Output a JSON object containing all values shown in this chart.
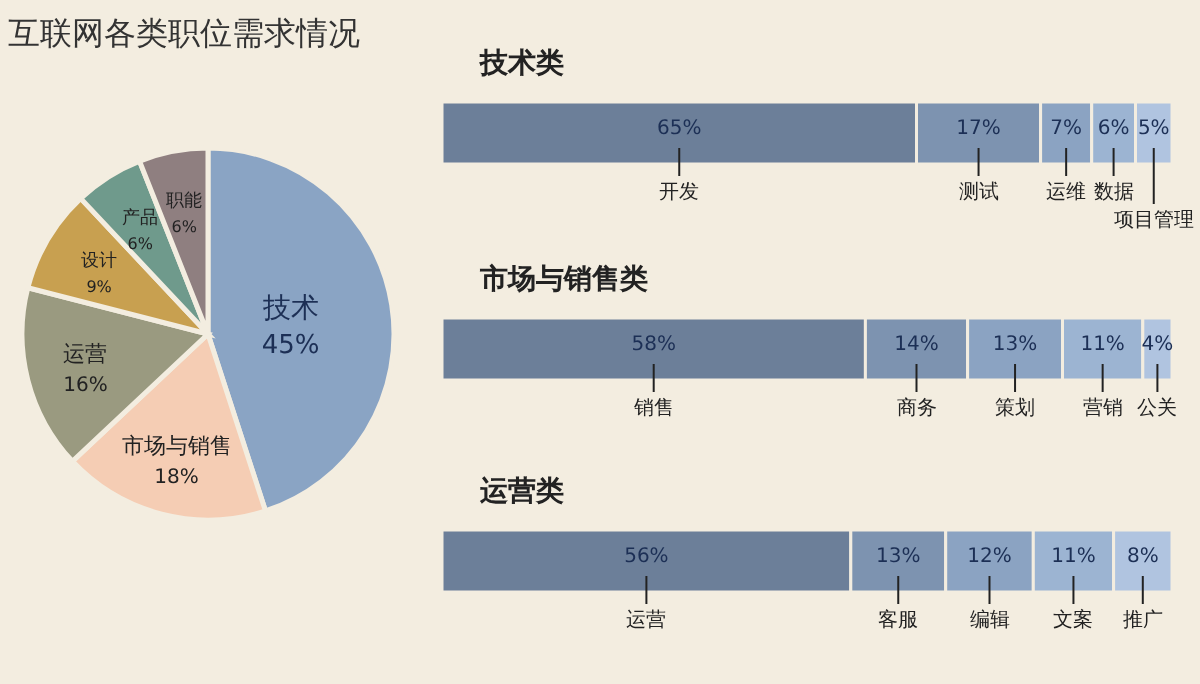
{
  "chart_data": [
    {
      "type": "pie",
      "title": "互联网各类职位需求情况",
      "categories": [
        "技术",
        "市场与销售",
        "运营",
        "设计",
        "产品",
        "职能"
      ],
      "values": [
        45,
        18,
        16,
        9,
        6,
        6
      ],
      "value_labels": [
        "45%",
        "18%",
        "16%",
        "9%",
        "6%",
        "6%"
      ],
      "colors": [
        "#8aa4c4",
        "#f5cdb4",
        "#9a9a80",
        "#c8a050",
        "#6f9a8c",
        "#8f7f80"
      ]
    },
    {
      "type": "bar",
      "title": "技术类",
      "orientation": "horizontal",
      "stacked": true,
      "xlim": [
        0,
        100
      ],
      "categories": [
        null
      ],
      "series": [
        {
          "name": "开发",
          "color": "#6c7f99",
          "values": [
            65
          ],
          "value_labels": [
            "65%"
          ]
        },
        {
          "name": "测试",
          "color": "#7d93b0",
          "values": [
            17
          ],
          "value_labels": [
            "17%"
          ]
        },
        {
          "name": "运维",
          "color": "#8ba3c2",
          "values": [
            7
          ],
          "value_labels": [
            "7%"
          ]
        },
        {
          "name": "数据",
          "color": "#9cb4d2",
          "values": [
            6
          ],
          "value_labels": [
            "6%"
          ]
        },
        {
          "name": "项目管理",
          "color": "#b0c4e0",
          "values": [
            5
          ],
          "value_labels": [
            "5%"
          ]
        }
      ]
    },
    {
      "type": "bar",
      "title": "市场与销售类",
      "orientation": "horizontal",
      "stacked": true,
      "xlim": [
        0,
        100
      ],
      "categories": [
        null
      ],
      "series": [
        {
          "name": "销售",
          "color": "#6c7f99",
          "values": [
            58
          ],
          "value_labels": [
            "58%"
          ]
        },
        {
          "name": "商务",
          "color": "#7d93b0",
          "values": [
            14
          ],
          "value_labels": [
            "14%"
          ]
        },
        {
          "name": "策划",
          "color": "#8ba3c2",
          "values": [
            13
          ],
          "value_labels": [
            "13%"
          ]
        },
        {
          "name": "营销",
          "color": "#9cb4d2",
          "values": [
            11
          ],
          "value_labels": [
            "11%"
          ]
        },
        {
          "name": "公关",
          "color": "#b0c4e0",
          "values": [
            4
          ],
          "value_labels": [
            "4%"
          ]
        }
      ]
    },
    {
      "type": "bar",
      "title": "运营类",
      "orientation": "horizontal",
      "stacked": true,
      "xlim": [
        0,
        100
      ],
      "categories": [
        null
      ],
      "series": [
        {
          "name": "运营",
          "color": "#6c7f99",
          "values": [
            56
          ],
          "value_labels": [
            "56%"
          ]
        },
        {
          "name": "客服",
          "color": "#7d93b0",
          "values": [
            13
          ],
          "value_labels": [
            "13%"
          ]
        },
        {
          "name": "编辑",
          "color": "#8ba3c2",
          "values": [
            12
          ],
          "value_labels": [
            "12%"
          ]
        },
        {
          "name": "文案",
          "color": "#9cb4d2",
          "values": [
            11
          ],
          "value_labels": [
            "11%"
          ]
        },
        {
          "name": "推广",
          "color": "#b0c4e0",
          "values": [
            8
          ],
          "value_labels": [
            "8%"
          ]
        }
      ]
    }
  ]
}
